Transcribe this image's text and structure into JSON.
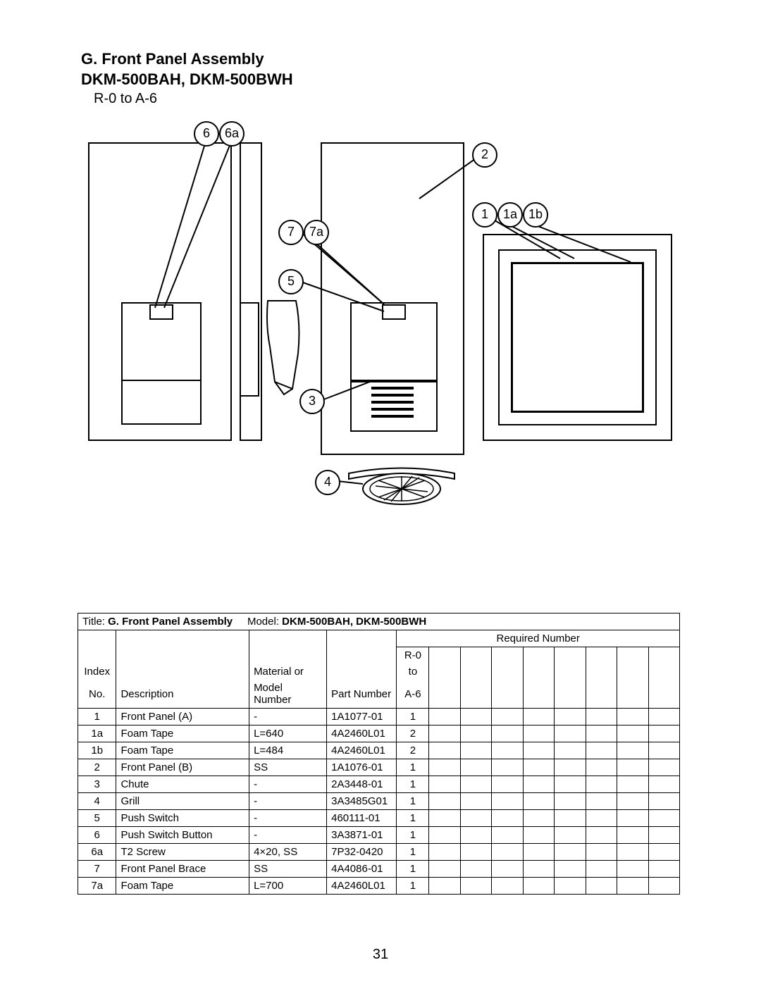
{
  "header": {
    "title_line1": "G. Front Panel Assembly",
    "title_line2": "DKM-500BAH, DKM-500BWH",
    "revision": "R-0 to A-6"
  },
  "callouts": {
    "c1": "1",
    "c1a": "1a",
    "c1b": "1b",
    "c2": "2",
    "c3": "3",
    "c4": "4",
    "c5": "5",
    "c6": "6",
    "c6a": "6a",
    "c7": "7",
    "c7a": "7a"
  },
  "table": {
    "title_label": "Title:",
    "title_value": "G. Front Panel Assembly",
    "model_label": "Model:",
    "model_value": "DKM-500BAH, DKM-500BWH",
    "required_header": "Required Number",
    "rev_col": "R-0\nto\nA-6",
    "idx_header_1": "Index",
    "idx_header_2": "No.",
    "desc_header": "Description",
    "mat_header_1": "Material or",
    "mat_header_2": "Model Number",
    "part_header": "Part Number",
    "rows": [
      {
        "idx": "1",
        "desc": "Front Panel (A)",
        "mat": "-",
        "part": "1A1077-01",
        "req": "1"
      },
      {
        "idx": "1a",
        "desc": "Foam Tape",
        "mat": "L=640",
        "part": "4A2460L01",
        "req": "2"
      },
      {
        "idx": "1b",
        "desc": "Foam Tape",
        "mat": "L=484",
        "part": "4A2460L01",
        "req": "2"
      },
      {
        "idx": "2",
        "desc": "Front Panel (B)",
        "mat": "SS",
        "part": "1A1076-01",
        "req": "1"
      },
      {
        "idx": "3",
        "desc": "Chute",
        "mat": "-",
        "part": "2A3448-01",
        "req": "1"
      },
      {
        "idx": "4",
        "desc": "Grill",
        "mat": "-",
        "part": "3A3485G01",
        "req": "1"
      },
      {
        "idx": "5",
        "desc": "Push Switch",
        "mat": "-",
        "part": "460111-01",
        "req": "1"
      },
      {
        "idx": "6",
        "desc": "Push Switch Button",
        "mat": "-",
        "part": "3A3871-01",
        "req": "1"
      },
      {
        "idx": "6a",
        "desc": "T2 Screw",
        "mat": "4×20, SS",
        "part": "7P32-0420",
        "req": "1"
      },
      {
        "idx": "7",
        "desc": "Front Panel Brace",
        "mat": "SS",
        "part": "4A4086-01",
        "req": "1"
      },
      {
        "idx": "7a",
        "desc": "Foam Tape",
        "mat": "L=700",
        "part": "4A2460L01",
        "req": "1"
      }
    ]
  },
  "page_number": "31",
  "colors": {
    "line": "#000000",
    "bg": "#ffffff"
  }
}
